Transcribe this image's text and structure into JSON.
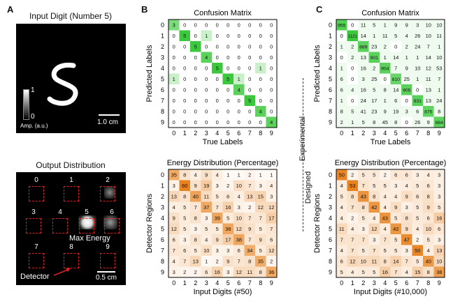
{
  "panels": {
    "A": {
      "letter": "A",
      "input_title": "Input Digit (Number 5)",
      "colorbar_max": "1",
      "colorbar_min": "0",
      "colorbar_label": "Amp. (a.u.)",
      "scale_top": "1.0 cm",
      "output_title": "Output Distribution",
      "region_labels": [
        "0",
        "1",
        "2",
        "3",
        "4",
        "5",
        "6",
        "7",
        "8",
        "9"
      ],
      "max_energy_label": "Max Energy",
      "detector_label": "Detector",
      "scale_bottom": "0.5 cm"
    },
    "B": {
      "letter": "B"
    },
    "C": {
      "letter": "C"
    },
    "divider": {
      "top_label": "Experimental",
      "bottom_label": "Designed"
    }
  },
  "colors": {
    "green_max": "#3cc83c",
    "orange_max": "#e8821e",
    "region_border": "#e02020"
  },
  "chart_data": [
    {
      "type": "heatmap",
      "panel": "B-top",
      "title": "Confusion Matrix",
      "xlabel": "True Labels",
      "ylabel": "Predicted Labels",
      "x_ticks": [
        "0",
        "1",
        "2",
        "3",
        "4",
        "5",
        "6",
        "7",
        "8",
        "9"
      ],
      "y_ticks": [
        "0",
        "1",
        "2",
        "3",
        "4",
        "5",
        "6",
        "7",
        "8",
        "9"
      ],
      "colormap": "green",
      "vmax": 5,
      "values": [
        [
          3,
          0,
          0,
          0,
          0,
          0,
          0,
          0,
          0,
          0
        ],
        [
          0,
          5,
          0,
          1,
          0,
          0,
          0,
          0,
          0,
          0
        ],
        [
          0,
          0,
          5,
          0,
          0,
          0,
          0,
          0,
          0,
          0
        ],
        [
          0,
          0,
          0,
          4,
          0,
          0,
          0,
          0,
          0,
          0
        ],
        [
          0,
          0,
          0,
          0,
          5,
          0,
          0,
          0,
          1,
          0
        ],
        [
          1,
          0,
          0,
          0,
          0,
          5,
          1,
          0,
          0,
          0
        ],
        [
          0,
          0,
          0,
          0,
          0,
          0,
          4,
          0,
          0,
          0
        ],
        [
          0,
          0,
          0,
          0,
          0,
          0,
          0,
          5,
          0,
          0
        ],
        [
          0,
          0,
          0,
          0,
          0,
          0,
          0,
          0,
          4,
          0
        ],
        [
          0,
          0,
          0,
          0,
          0,
          0,
          0,
          0,
          0,
          4
        ]
      ]
    },
    {
      "type": "heatmap",
      "panel": "B-bottom",
      "title": "Energy Distribution (Percentage)",
      "xlabel": "Input Digits (#50)",
      "ylabel": "Detector Regions",
      "x_ticks": [
        "0",
        "1",
        "2",
        "3",
        "4",
        "5",
        "6",
        "7",
        "8",
        "9"
      ],
      "y_ticks": [
        "0",
        "1",
        "2",
        "3",
        "4",
        "5",
        "6",
        "7",
        "8",
        "9"
      ],
      "colormap": "orange",
      "vmax": 60,
      "values": [
        [
          35,
          8,
          4,
          9,
          4,
          1,
          1,
          2,
          1,
          1
        ],
        [
          3,
          60,
          9,
          19,
          3,
          2,
          10,
          7,
          3,
          4
        ],
        [
          13,
          8,
          40,
          11,
          5,
          6,
          4,
          13,
          15,
          3
        ],
        [
          4,
          5,
          7,
          37,
          7,
          16,
          3,
          2,
          12,
          12
        ],
        [
          9,
          5,
          8,
          3,
          39,
          5,
          10,
          7,
          7,
          17
        ],
        [
          12,
          5,
          3,
          5,
          5,
          38,
          12,
          9,
          5,
          7
        ],
        [
          6,
          3,
          8,
          4,
          9,
          17,
          38,
          7,
          9,
          6
        ],
        [
          7,
          6,
          5,
          10,
          3,
          3,
          6,
          34,
          5,
          12
        ],
        [
          4,
          7,
          13,
          1,
          2,
          9,
          7,
          8,
          35,
          2
        ],
        [
          3,
          2,
          2,
          6,
          16,
          3,
          12,
          11,
          8,
          36
        ]
      ]
    },
    {
      "type": "heatmap",
      "panel": "C-top",
      "title": "Confusion Matrix",
      "xlabel": "True Labels",
      "ylabel": "Predicted Labels",
      "x_ticks": [
        "0",
        "1",
        "2",
        "3",
        "4",
        "5",
        "6",
        "7",
        "8",
        "9"
      ],
      "y_ticks": [
        "0",
        "1",
        "2",
        "3",
        "4",
        "5",
        "6",
        "7",
        "8",
        "9"
      ],
      "colormap": "green",
      "vmax": 1121,
      "values": [
        [
          955,
          0,
          11,
          5,
          1,
          9,
          9,
          3,
          10,
          10
        ],
        [
          0,
          1121,
          14,
          1,
          11,
          5,
          4,
          26,
          10,
          11
        ],
        [
          1,
          2,
          889,
          23,
          2,
          0,
          2,
          24,
          7,
          1
        ],
        [
          0,
          2,
          13,
          901,
          1,
          14,
          1,
          1,
          14,
          10
        ],
        [
          1,
          0,
          16,
          2,
          904,
          7,
          9,
          10,
          12,
          53
        ],
        [
          6,
          0,
          3,
          25,
          0,
          810,
          25,
          1,
          11,
          7
        ],
        [
          6,
          4,
          16,
          5,
          8,
          14,
          905,
          0,
          13,
          1
        ],
        [
          1,
          0,
          24,
          17,
          1,
          6,
          0,
          931,
          13,
          24
        ],
        [
          8,
          5,
          41,
          23,
          9,
          19,
          3,
          6,
          875,
          8
        ],
        [
          2,
          1,
          5,
          8,
          45,
          8,
          0,
          26,
          9,
          884
        ]
      ]
    },
    {
      "type": "heatmap",
      "panel": "C-bottom",
      "title": "Energy Distribution (Percentage)",
      "xlabel": "Input Digits (#10,000)",
      "ylabel": "Detector Regions",
      "x_ticks": [
        "0",
        "1",
        "2",
        "3",
        "4",
        "5",
        "6",
        "7",
        "8",
        "9"
      ],
      "y_ticks": [
        "0",
        "1",
        "2",
        "3",
        "4",
        "5",
        "6",
        "7",
        "8",
        "9"
      ],
      "colormap": "orange",
      "vmax": 53,
      "values": [
        [
          50,
          2,
          5,
          5,
          2,
          6,
          6,
          3,
          4,
          3
        ],
        [
          4,
          53,
          7,
          5,
          5,
          3,
          4,
          5,
          6,
          3
        ],
        [
          5,
          8,
          43,
          8,
          4,
          4,
          9,
          6,
          8,
          3
        ],
        [
          4,
          7,
          8,
          42,
          4,
          9,
          3,
          5,
          9,
          5
        ],
        [
          4,
          2,
          5,
          4,
          43,
          5,
          8,
          5,
          6,
          16
        ],
        [
          11,
          4,
          3,
          12,
          4,
          42,
          9,
          4,
          10,
          6
        ],
        [
          7,
          7,
          7,
          3,
          7,
          5,
          47,
          2,
          5,
          3
        ],
        [
          4,
          7,
          5,
          7,
          5,
          5,
          3,
          50,
          4,
          13
        ],
        [
          6,
          12,
          10,
          11,
          8,
          14,
          7,
          5,
          40,
          10
        ],
        [
          5,
          4,
          5,
          5,
          16,
          7,
          4,
          15,
          8,
          38
        ]
      ]
    }
  ]
}
